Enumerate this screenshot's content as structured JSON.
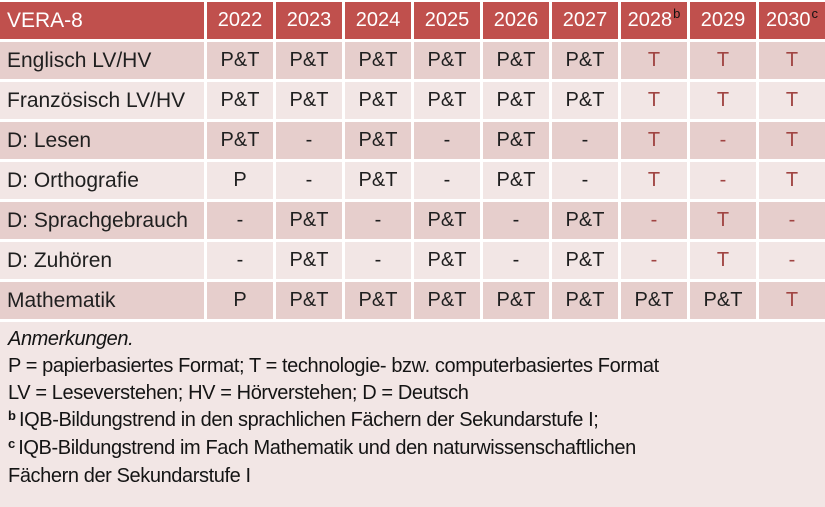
{
  "colors": {
    "header_bg": "#C0504D",
    "band_dark": "#E6CECC",
    "band_light": "#F2E6E5",
    "notes_bg": "#F2E6E5",
    "red_text": "#A04442",
    "dark_text": "#1F1F1F"
  },
  "table": {
    "corner_label": "VERA-8",
    "columns": [
      {
        "label": "2022",
        "sup": ""
      },
      {
        "label": "2023",
        "sup": ""
      },
      {
        "label": "2024",
        "sup": ""
      },
      {
        "label": "2025",
        "sup": ""
      },
      {
        "label": "2026",
        "sup": ""
      },
      {
        "label": "2027",
        "sup": ""
      },
      {
        "label": "2028",
        "sup": "b"
      },
      {
        "label": "2029",
        "sup": ""
      },
      {
        "label": "2030",
        "sup": "c"
      }
    ],
    "rows": [
      {
        "label": "Englisch LV/HV",
        "cells": [
          {
            "t": "P&T",
            "red": false
          },
          {
            "t": "P&T",
            "red": false
          },
          {
            "t": "P&T",
            "red": false
          },
          {
            "t": "P&T",
            "red": false
          },
          {
            "t": "P&T",
            "red": false
          },
          {
            "t": "P&T",
            "red": false
          },
          {
            "t": "T",
            "red": true
          },
          {
            "t": "T",
            "red": true
          },
          {
            "t": "T",
            "red": true
          }
        ]
      },
      {
        "label": "Französisch LV/HV",
        "cells": [
          {
            "t": "P&T",
            "red": false
          },
          {
            "t": "P&T",
            "red": false
          },
          {
            "t": "P&T",
            "red": false
          },
          {
            "t": "P&T",
            "red": false
          },
          {
            "t": "P&T",
            "red": false
          },
          {
            "t": "P&T",
            "red": false
          },
          {
            "t": "T",
            "red": true
          },
          {
            "t": "T",
            "red": true
          },
          {
            "t": "T",
            "red": true
          }
        ]
      },
      {
        "label": "D: Lesen",
        "cells": [
          {
            "t": "P&T",
            "red": false
          },
          {
            "t": "-",
            "red": false
          },
          {
            "t": "P&T",
            "red": false
          },
          {
            "t": "-",
            "red": false
          },
          {
            "t": "P&T",
            "red": false
          },
          {
            "t": "-",
            "red": false
          },
          {
            "t": "T",
            "red": true
          },
          {
            "t": "-",
            "red": true
          },
          {
            "t": "T",
            "red": true
          }
        ]
      },
      {
        "label": "D: Orthografie",
        "cells": [
          {
            "t": "P",
            "red": false
          },
          {
            "t": "-",
            "red": false
          },
          {
            "t": "P&T",
            "red": false
          },
          {
            "t": "-",
            "red": false
          },
          {
            "t": "P&T",
            "red": false
          },
          {
            "t": "-",
            "red": false
          },
          {
            "t": "T",
            "red": true
          },
          {
            "t": "-",
            "red": true
          },
          {
            "t": "T",
            "red": true
          }
        ]
      },
      {
        "label": "D: Sprachgebrauch",
        "cells": [
          {
            "t": "-",
            "red": false
          },
          {
            "t": "P&T",
            "red": false
          },
          {
            "t": "-",
            "red": false
          },
          {
            "t": "P&T",
            "red": false
          },
          {
            "t": "-",
            "red": false
          },
          {
            "t": "P&T",
            "red": false
          },
          {
            "t": "-",
            "red": true
          },
          {
            "t": "T",
            "red": true
          },
          {
            "t": "-",
            "red": true
          }
        ]
      },
      {
        "label": "D: Zuhören",
        "cells": [
          {
            "t": "-",
            "red": false
          },
          {
            "t": "P&T",
            "red": false
          },
          {
            "t": "-",
            "red": false
          },
          {
            "t": "P&T",
            "red": false
          },
          {
            "t": "-",
            "red": false
          },
          {
            "t": "P&T",
            "red": false
          },
          {
            "t": "-",
            "red": true
          },
          {
            "t": "T",
            "red": true
          },
          {
            "t": "-",
            "red": true
          }
        ]
      },
      {
        "label": "Mathematik",
        "cells": [
          {
            "t": "P",
            "red": false
          },
          {
            "t": "P&T",
            "red": false
          },
          {
            "t": "P&T",
            "red": false
          },
          {
            "t": "P&T",
            "red": false
          },
          {
            "t": "P&T",
            "red": false
          },
          {
            "t": "P&T",
            "red": false
          },
          {
            "t": "P&T",
            "red": false
          },
          {
            "t": "P&T",
            "red": false
          },
          {
            "t": "T",
            "red": true
          }
        ]
      }
    ]
  },
  "notes": {
    "heading": "Anmerkungen.",
    "lines": [
      {
        "sup": "",
        "text": "P = papierbasiertes Format; T = technologie- bzw. computerbasiertes Format"
      },
      {
        "sup": "",
        "text": "LV = Leseverstehen; HV = Hörverstehen; D = Deutsch"
      },
      {
        "sup": "b",
        "text": "IQB-Bildungstrend in den sprachlichen Fächern der Sekundarstufe I;"
      },
      {
        "sup": "c",
        "text": "IQB-Bildungstrend im Fach Mathematik und den naturwissenschaftlichen"
      },
      {
        "sup": "",
        "text": "Fächern der Sekundarstufe I"
      }
    ]
  }
}
